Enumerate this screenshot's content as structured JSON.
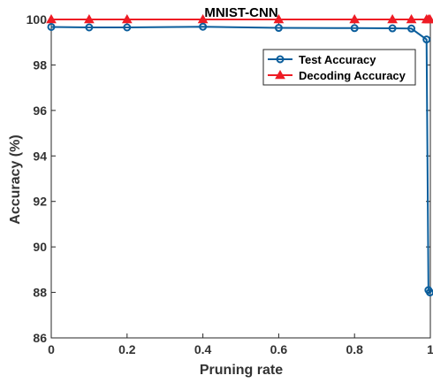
{
  "chart_data": {
    "type": "line",
    "title": "MNIST-CNN",
    "xlabel": "Pruning rate",
    "ylabel": "Accuracy (%)",
    "xlim": [
      0,
      1
    ],
    "ylim": [
      86,
      100
    ],
    "xticks": [
      0,
      0.2,
      0.4,
      0.6,
      0.8,
      1
    ],
    "xtick_labels": [
      "0",
      "0.2",
      "0.4",
      "0.6",
      "0.8",
      "1"
    ],
    "yticks": [
      86,
      88,
      90,
      92,
      94,
      96,
      98,
      100
    ],
    "yticks_labels": [
      "86",
      "88",
      "90",
      "92",
      "94",
      "96",
      "98",
      "100"
    ],
    "grid": false,
    "legend_position": "top-right",
    "series": [
      {
        "name": "Test Accuracy",
        "color": "#0b5e9c",
        "marker": "circle",
        "x": [
          0,
          0.1,
          0.2,
          0.4,
          0.6,
          0.8,
          0.9,
          0.95,
          0.99,
          0.995,
          0.999
        ],
        "y": [
          99.67,
          99.65,
          99.65,
          99.68,
          99.63,
          99.62,
          99.61,
          99.6,
          99.12,
          88.1,
          88.0
        ]
      },
      {
        "name": "Decoding Accuracy",
        "color": "#ee1c25",
        "marker": "triangle",
        "x": [
          0,
          0.1,
          0.2,
          0.4,
          0.6,
          0.8,
          0.9,
          0.95,
          0.99,
          0.995,
          0.999
        ],
        "y": [
          100,
          100,
          100,
          100,
          100,
          100,
          100,
          100,
          100,
          100,
          100
        ]
      }
    ]
  }
}
